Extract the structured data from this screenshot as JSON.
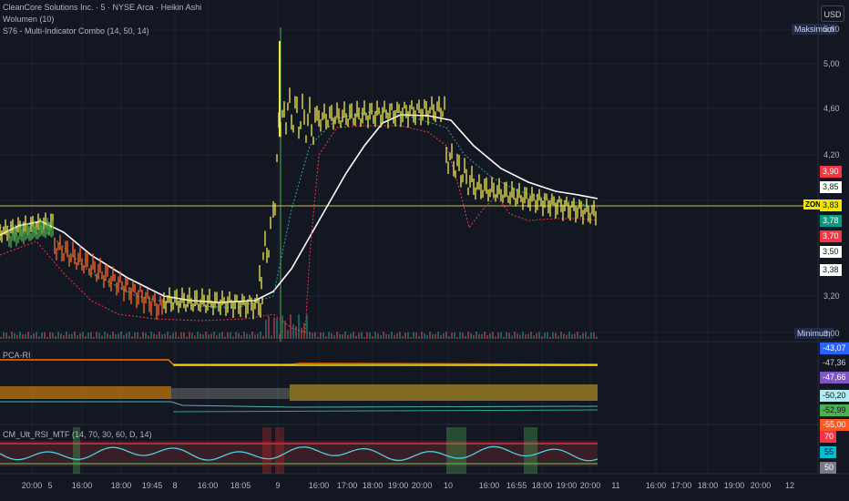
{
  "header": {
    "symbol_line": "CleanCore Solutions Inc. · 5 · NYSE Arca · Heikin Ashi",
    "volume_line": "Wolumen (10)",
    "indicator_line": "S76 - Multi-Indicator Combo (14, 50, 14)"
  },
  "currency_button": "USD",
  "price_axis": {
    "labels": [
      "5,00",
      "4,60",
      "4,20",
      "3,20",
      "3,00"
    ],
    "maximum_label": "Maksimum",
    "maximum_value": "5,80",
    "minimum_label": "Minimum",
    "minimum_value": "3,00",
    "zone_label": "ZONE"
  },
  "price_tags": [
    {
      "value": "3,90",
      "bg": "#f23645",
      "fg": "#ffffff"
    },
    {
      "value": "3,85",
      "bg": "#ffffff",
      "fg": "#131722"
    },
    {
      "value": "3,83",
      "bg": "#f2e600",
      "fg": "#131722"
    },
    {
      "value": "3,78",
      "bg": "#089981",
      "fg": "#ffffff"
    },
    {
      "value": "3,70",
      "bg": "#f23645",
      "fg": "#ffffff"
    },
    {
      "value": "3,50",
      "bg": "#ffffff",
      "fg": "#131722"
    },
    {
      "value": "3,38",
      "bg": "#ffffff",
      "fg": "#131722"
    }
  ],
  "pane2": {
    "label": "PCA-RI",
    "tags": [
      {
        "value": "-43,07",
        "bg": "#2962ff",
        "fg": "#ffffff"
      },
      {
        "value": "-47,36",
        "bg": "#131722",
        "fg": "#d1d4dc"
      },
      {
        "value": "-47,66",
        "bg": "#7e57c2",
        "fg": "#ffffff"
      },
      {
        "value": "-50,20",
        "bg": "#b2ebf2",
        "fg": "#131722"
      },
      {
        "value": "-52,99",
        "bg": "#4caf50",
        "fg": "#131722"
      },
      {
        "value": "-55,00",
        "bg": "#ff5722",
        "fg": "#ffffff"
      }
    ]
  },
  "pane3": {
    "label": "CM_Ult_RSI_MTF (14, 70, 30, 60, D, 14)",
    "tags": [
      {
        "value": "70",
        "bg": "#f23645",
        "fg": "#ffffff"
      },
      {
        "value": "55",
        "bg": "#00bcd4",
        "fg": "#131722"
      },
      {
        "value": "50",
        "bg": "#787b86",
        "fg": "#ffffff"
      }
    ]
  },
  "time_axis": {
    "labels": [
      "20:00",
      "5",
      "16:00",
      "18:00",
      "19:45",
      "8",
      "16:00",
      "18:05",
      "9",
      "16:00",
      "17:00",
      "18:00",
      "19:00",
      "20:00",
      "10",
      "16:00",
      "16:55",
      "18:00",
      "19:00",
      "20:00",
      "11",
      "16:00",
      "17:00",
      "18:00",
      "19:00",
      "20:00",
      "12"
    ]
  },
  "colors": {
    "background": "#131722",
    "grid": "#1e222d",
    "candle_yellow": "#f2e94e",
    "candle_orange": "#ff6a28",
    "candle_green": "#4caf50",
    "ma_white": "#ffffff",
    "ma_green_dotted": "#26a69a",
    "ma_red_dotted": "#f23645",
    "zone_line": "#c9c239"
  }
}
